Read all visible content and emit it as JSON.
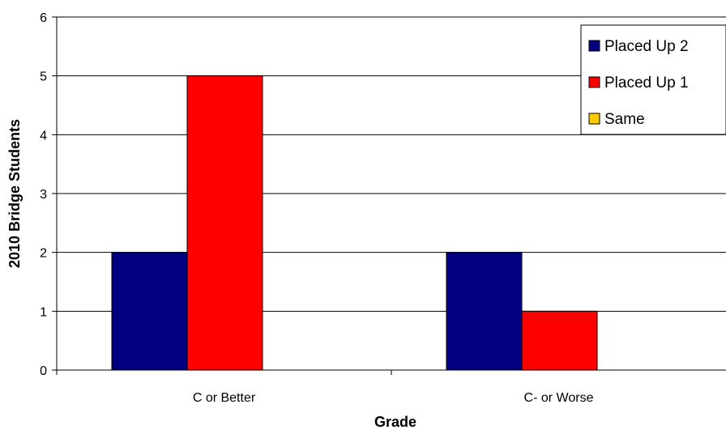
{
  "chart_data": {
    "type": "bar",
    "title": "",
    "xlabel": "Grade",
    "ylabel": "2010 Bridge Students",
    "categories": [
      "C or Better",
      "C- or Worse"
    ],
    "series": [
      {
        "name": "Placed Up 2",
        "values": [
          2,
          2
        ],
        "color": "#000080"
      },
      {
        "name": "Placed Up 1",
        "values": [
          5,
          1
        ],
        "color": "#ff0000"
      },
      {
        "name": "Same",
        "values": [
          0,
          0
        ],
        "color": "#ffcc00"
      }
    ],
    "ylim": [
      0,
      6
    ],
    "yticks": [
      "0",
      "1",
      "2",
      "3",
      "4",
      "5",
      "6"
    ],
    "grid": true,
    "legend_position": "top-right"
  }
}
